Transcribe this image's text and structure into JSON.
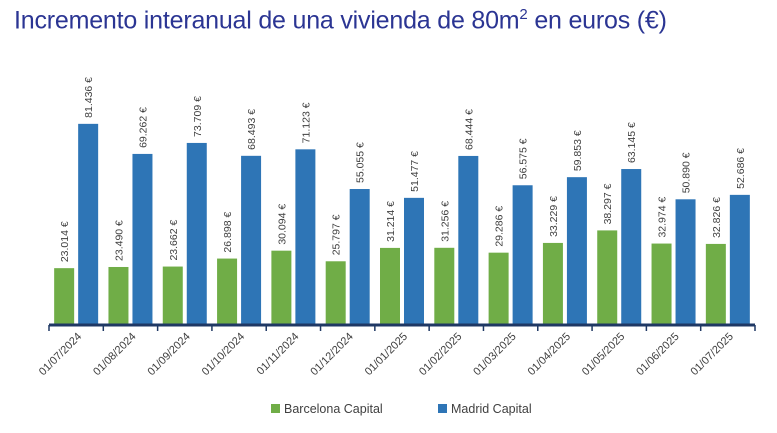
{
  "title": {
    "main": "Incremento interanual de una vivienda de 80m",
    "sup": "2",
    "tail": " en euros (€)"
  },
  "chart_data": {
    "type": "bar",
    "categories": [
      "01/07/2024",
      "01/08/2024",
      "01/09/2024",
      "01/10/2024",
      "01/11/2024",
      "01/12/2024",
      "01/01/2025",
      "01/02/2025",
      "01/03/2025",
      "01/04/2025",
      "01/05/2025",
      "01/06/2025",
      "01/07/2025"
    ],
    "series": [
      {
        "name": "Barcelona Capital",
        "color": "#70ad47",
        "values": [
          23014,
          23490,
          23662,
          26898,
          30094,
          25797,
          31214,
          31256,
          29286,
          33229,
          38297,
          32974,
          32826
        ],
        "labels": [
          "23.014 €",
          "23.490 €",
          "23.662 €",
          "26.898 €",
          "30.094 €",
          "25.797 €",
          "31.214 €",
          "31.256 €",
          "29.286 €",
          "33.229 €",
          "38.297 €",
          "32.974 €",
          "32.826 €"
        ]
      },
      {
        "name": "Madrid Capital",
        "color": "#2e75b6",
        "values": [
          81436,
          69262,
          73709,
          68493,
          71123,
          55055,
          51477,
          68444,
          56575,
          59853,
          63145,
          50890,
          52686
        ],
        "labels": [
          "81.436 €",
          "69.262 €",
          "73.709 €",
          "68.493 €",
          "71.123 €",
          "55.055 €",
          "51.477 €",
          "68.444 €",
          "56.575 €",
          "59.853 €",
          "63.145 €",
          "50.890 €",
          "52.686 €"
        ]
      }
    ],
    "ylim": [
      0,
      100000
    ],
    "grid": false,
    "legend": "bottom-center",
    "axis_color": "#1f3864"
  }
}
